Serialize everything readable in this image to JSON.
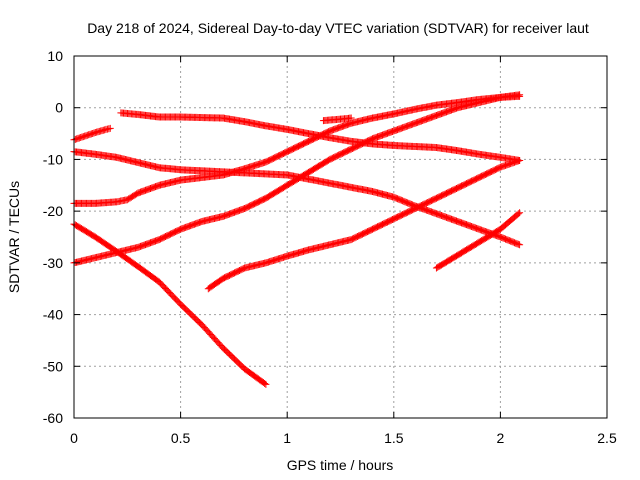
{
  "chart_data": {
    "type": "scatter",
    "title": "Day 218 of 2024, Sidereal Day-to-day VTEC variation (SDTVAR) for receiver laut",
    "xlabel": "GPS time / hours",
    "ylabel": "SDTVAR / TECUs",
    "xlim": [
      0,
      2.5
    ],
    "ylim": [
      -60,
      10
    ],
    "x_ticks": [
      0,
      0.5,
      1,
      1.5,
      2,
      2.5
    ],
    "x_tick_labels": [
      "0",
      "0.5",
      "1",
      "1.5",
      "2",
      "2.5"
    ],
    "y_ticks": [
      10,
      0,
      -10,
      -20,
      -30,
      -40,
      -50,
      -60
    ],
    "y_tick_labels": [
      "10",
      "0",
      "-10",
      "-20",
      "-30",
      "-40",
      "-50",
      "-60"
    ],
    "grid": true,
    "marker": "plus",
    "color": "#ff0000",
    "series": [
      {
        "points": [
          [
            0,
            -6.2
          ],
          [
            0.05,
            -5.5
          ],
          [
            0.1,
            -4.8
          ],
          [
            0.15,
            -4.2
          ],
          [
            0.17,
            -4.0
          ]
        ]
      },
      {
        "points": [
          [
            0.22,
            -1.0
          ],
          [
            0.3,
            -1.3
          ],
          [
            0.4,
            -1.8
          ],
          [
            0.5,
            -1.8
          ],
          [
            0.6,
            -1.9
          ],
          [
            0.7,
            -2.0
          ],
          [
            0.8,
            -2.7
          ],
          [
            0.9,
            -3.5
          ],
          [
            1.0,
            -4.2
          ],
          [
            1.1,
            -5.0
          ],
          [
            1.2,
            -5.8
          ],
          [
            1.3,
            -6.5
          ],
          [
            1.4,
            -7.0
          ],
          [
            1.5,
            -7.3
          ],
          [
            1.6,
            -7.5
          ],
          [
            1.7,
            -7.7
          ],
          [
            1.8,
            -8.3
          ],
          [
            1.9,
            -9.0
          ],
          [
            2.0,
            -9.6
          ],
          [
            2.09,
            -10.2
          ]
        ]
      },
      {
        "points": [
          [
            0,
            -8.5
          ],
          [
            0.1,
            -9.0
          ],
          [
            0.2,
            -9.6
          ],
          [
            0.3,
            -10.6
          ],
          [
            0.4,
            -11.6
          ],
          [
            0.5,
            -12.0
          ],
          [
            0.6,
            -12.2
          ],
          [
            0.7,
            -12.4
          ],
          [
            0.8,
            -12.6
          ],
          [
            0.9,
            -12.8
          ],
          [
            1.0,
            -13.0
          ],
          [
            1.1,
            -13.8
          ],
          [
            1.2,
            -14.6
          ],
          [
            1.3,
            -15.4
          ],
          [
            1.4,
            -16.2
          ],
          [
            1.5,
            -17.3
          ],
          [
            1.6,
            -19.0
          ],
          [
            1.7,
            -20.5
          ],
          [
            1.8,
            -22.0
          ],
          [
            1.9,
            -23.5
          ],
          [
            2.0,
            -25.0
          ],
          [
            2.09,
            -26.5
          ]
        ]
      },
      {
        "points": [
          [
            0,
            -18.5
          ],
          [
            0.1,
            -18.5
          ],
          [
            0.2,
            -18.2
          ],
          [
            0.25,
            -17.8
          ],
          [
            0.3,
            -16.5
          ],
          [
            0.4,
            -15.0
          ],
          [
            0.5,
            -14.0
          ],
          [
            0.6,
            -13.5
          ],
          [
            0.7,
            -13.0
          ],
          [
            0.8,
            -11.8
          ],
          [
            0.9,
            -10.5
          ],
          [
            1.0,
            -8.5
          ],
          [
            1.1,
            -6.5
          ],
          [
            1.2,
            -4.5
          ],
          [
            1.3,
            -3.0
          ],
          [
            1.4,
            -2.0
          ],
          [
            1.5,
            -1.2
          ],
          [
            1.6,
            -0.3
          ],
          [
            1.7,
            0.5
          ],
          [
            1.8,
            1.0
          ],
          [
            1.9,
            1.6
          ],
          [
            2.0,
            2.0
          ],
          [
            2.09,
            2.2
          ]
        ]
      },
      {
        "points": [
          [
            0,
            -22.5
          ],
          [
            0.1,
            -25.0
          ],
          [
            0.2,
            -27.8
          ],
          [
            0.3,
            -30.7
          ],
          [
            0.4,
            -33.7
          ],
          [
            0.5,
            -38.0
          ],
          [
            0.6,
            -42.0
          ],
          [
            0.7,
            -46.5
          ],
          [
            0.8,
            -50.5
          ],
          [
            0.9,
            -53.5
          ]
        ]
      },
      {
        "points": [
          [
            0,
            -30.0
          ],
          [
            0.1,
            -29.0
          ],
          [
            0.2,
            -28.0
          ],
          [
            0.3,
            -27.0
          ],
          [
            0.4,
            -25.5
          ],
          [
            0.5,
            -23.5
          ],
          [
            0.6,
            -22.0
          ],
          [
            0.7,
            -21.0
          ],
          [
            0.8,
            -19.5
          ],
          [
            0.9,
            -17.5
          ],
          [
            1.0,
            -15.0
          ],
          [
            1.1,
            -12.5
          ],
          [
            1.2,
            -10.0
          ],
          [
            1.3,
            -8.0
          ],
          [
            1.4,
            -6.0
          ],
          [
            1.5,
            -4.5
          ],
          [
            1.6,
            -3.0
          ],
          [
            1.7,
            -1.5
          ],
          [
            1.8,
            0.0
          ],
          [
            1.9,
            1.0
          ],
          [
            2.0,
            2.0
          ],
          [
            2.09,
            2.5
          ]
        ]
      },
      {
        "points": [
          [
            0.63,
            -35.0
          ],
          [
            0.7,
            -33.0
          ],
          [
            0.8,
            -31.0
          ],
          [
            0.9,
            -30.0
          ],
          [
            1.0,
            -28.7
          ],
          [
            1.1,
            -27.5
          ],
          [
            1.2,
            -26.5
          ],
          [
            1.3,
            -25.5
          ],
          [
            1.4,
            -23.5
          ],
          [
            1.5,
            -21.5
          ],
          [
            1.6,
            -19.5
          ],
          [
            1.7,
            -17.5
          ],
          [
            1.8,
            -15.5
          ],
          [
            1.9,
            -13.5
          ],
          [
            2.0,
            -11.5
          ],
          [
            2.09,
            -10.2
          ]
        ]
      },
      {
        "points": [
          [
            1.17,
            -2.5
          ],
          [
            1.25,
            -2.2
          ],
          [
            1.3,
            -2.0
          ]
        ]
      },
      {
        "points": [
          [
            1.7,
            -31.0
          ],
          [
            1.8,
            -28.5
          ],
          [
            1.9,
            -26.0
          ],
          [
            2.0,
            -23.5
          ],
          [
            2.09,
            -20.3
          ]
        ]
      }
    ]
  }
}
